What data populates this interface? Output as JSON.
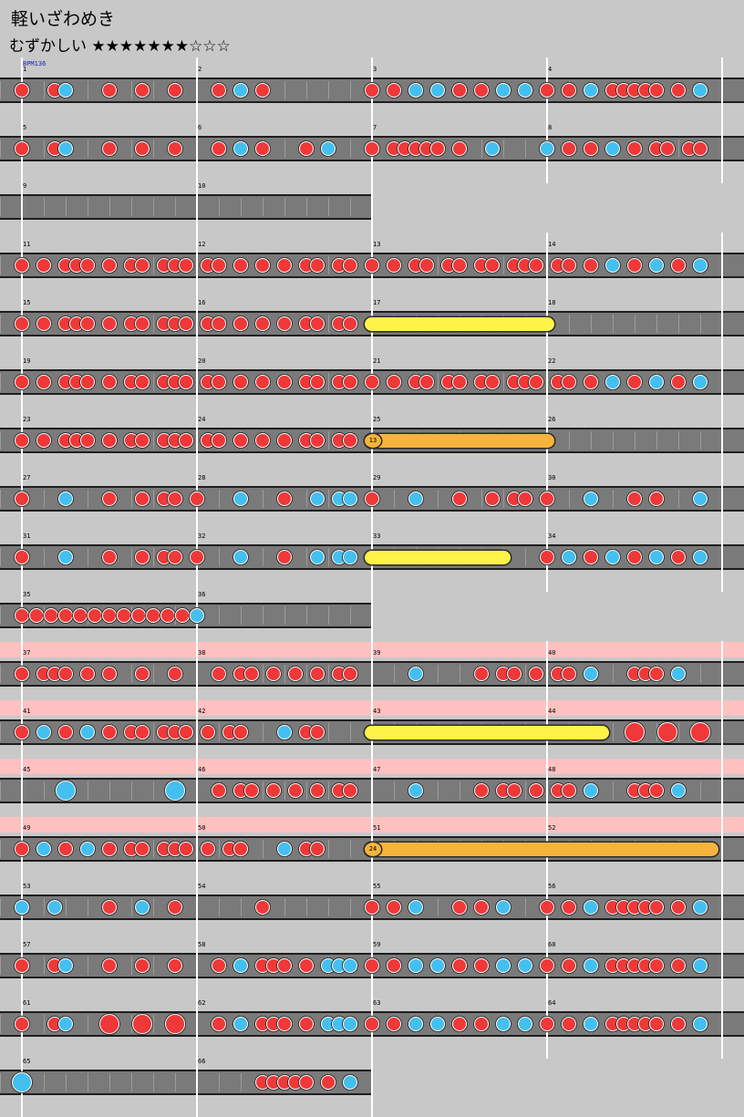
{
  "song": {
    "title": "軽いざわめき",
    "difficulty_label": "むずかしい",
    "stars": "★★★★★★★☆☆☆",
    "bpm_label": "BPM136"
  },
  "colors": {
    "background": "#c8c8c8",
    "lane": "#7a7a7a",
    "don": "#f03838",
    "ka": "#44c0f0",
    "roll": "#fff34a",
    "balloon": "#f6b43c",
    "gogo": "#ffc0c0"
  },
  "rows": [
    {
      "measures": 4,
      "start": 1,
      "notes": "d 0,d 1.5,k 2,d 4,d 5.5,d 7,d 9,k 10,d 11,d 16,d 17,k 18,k 19,d 20,d 21,k 22,k 23,d 24,d 25,k 26,d 27,d 27.5,d 28,d 28.5,d 29,d 30,k 31"
    },
    {
      "measures": 4,
      "start": 5,
      "notes": "d 0,d 1.5,k 2,d 4,d 5.5,d 7,d 9,k 10,d 11,d 13,k 14,d 16,d 17,d 17.5,d 18,d 18.5,d 19,d 20,k 21.5,k 24,d 25,d 26,k 27,d 28,d 29,d 29.5,d 30.5,d 31"
    },
    {
      "measures": 2,
      "start": 9,
      "notes": ""
    },
    {
      "measures": 4,
      "start": 11,
      "notes": "d 0,d 1,d 2,d 2.5,d 3,d 4,d 5,d 5.5,d 6.5,d 7,d 7.5,d 8.5,d 9,d 10,d 11,d 12,d 13,d 13.5,d 14.5,d 15,d 16,d 17,d 18,d 18.5,d 19.5,d 20,d 21,d 21.5,d 22.5,d 23,d 23.5,d 24.5,d 25,d 26,k 27,d 28,k 29,d 30,k 31"
    },
    {
      "measures": 4,
      "start": 15,
      "notes": "d 0,d 1,d 2,d 2.5,d 3,d 4,d 5,d 5.5,d 6.5,d 7,d 7.5,d 8.5,d 9,d 10,d 11,d 12,d 13,d 13.5,d 14.5,d 15",
      "roll": [
        16,
        24
      ]
    },
    {
      "measures": 4,
      "start": 19,
      "notes": "d 0,d 1,d 2,d 2.5,d 3,d 4,d 5,d 5.5,d 6.5,d 7,d 7.5,d 8.5,d 9,d 10,d 11,d 12,d 13,d 13.5,d 14.5,d 15,d 16,d 17,d 18,d 18.5,d 19.5,d 20,d 21,d 21.5,d 22.5,d 23,d 23.5,d 24.5,d 25,d 26,k 27,d 28,k 29,d 30,k 31"
    },
    {
      "measures": 4,
      "start": 23,
      "notes": "d 0,d 1,d 2,d 2.5,d 3,d 4,d 5,d 5.5,d 6.5,d 7,d 7.5,d 8.5,d 9,d 10,d 11,d 12,d 13,d 13.5,d 14.5,d 15",
      "balloon": [
        16,
        24,
        "13"
      ]
    },
    {
      "measures": 4,
      "start": 27,
      "notes": "d 0,k 2,d 4,d 5.5,d 6.5,d 7,d 8,k 10,d 12,k 13.5,k 14.5,k 15,d 16,k 18,d 20,d 21.5,d 22.5,d 23,d 24,k 26,d 28,d 29,k 31"
    },
    {
      "measures": 4,
      "start": 31,
      "notes": "d 0,k 2,d 4,d 5.5,d 6.5,d 7,d 8,k 10,d 12,k 13.5,k 14.5,k 15,d 24,k 25,d 26,k 27,d 28,k 29,d 30,k 31",
      "roll": [
        16,
        22
      ]
    },
    {
      "measures": 2,
      "start": 35,
      "notes": "d 0,d 0.667,d 1.333,d 2,d 2.667,d 3.333,d 4,d 4.667,d 5.333,d 6,d 6.667,d 7.333,k 8"
    },
    {
      "measures": 4,
      "start": 37,
      "gogo": true,
      "notes": "d 0,d 1,d 1.5,d 2,d 3,d 4,d 5.5,d 7,d 9,d 10,d 10.5,d 11.5,d 12.5,d 13.5,d 14.5,d 15,k 18,d 21,d 22,d 22.5,d 23.5,d 24.5,d 25,k 26,d 28,d 28.5,d 29,k 30"
    },
    {
      "measures": 4,
      "start": 41,
      "gogo": true,
      "notes": "d 0,k 1,d 2,k 3,d 4,d 5,d 5.5,d 6.5,d 7,d 7.5,d 8.5,d 9.5,d 10,k 12,d 13,d 13.5,D 28,D 29.5,D 31",
      "roll": [
        16,
        26.5
      ]
    },
    {
      "measures": 4,
      "start": 45,
      "gogo": true,
      "notes": "K 2,K 7,d 9,d 10,d 10.5,d 11.5,d 12.5,d 13.5,d 14.5,d 15,k 18,d 21,d 22,d 22.5,d 23.5,d 24.5,d 25,k 26,d 28,d 28.5,d 29,k 30"
    },
    {
      "measures": 4,
      "start": 49,
      "gogo": true,
      "notes": "d 0,k 1,d 2,k 3,d 4,d 5,d 5.5,d 6.5,d 7,d 7.5,d 8.5,d 9.5,d 10,k 12,d 13,d 13.5",
      "balloon": [
        16,
        31.5,
        "24"
      ]
    },
    {
      "measures": 4,
      "start": 53,
      "notes": "k 0,k 1.5,d 4,k 5.5,d 7,d 11,d 16,d 17,k 18,d 20,d 21,k 22,d 24,d 25,k 26,d 27,d 27.5,d 28,d 28.5,d 29,d 30,k 31"
    },
    {
      "measures": 4,
      "start": 57,
      "notes": "d 0,d 1.5,k 2,d 4,d 5.5,d 7,d 9,k 10,d 11,d 11.5,d 12,d 13,k 14,k 14.5,k 15,d 16,d 17,k 18,k 19,d 20,d 21,k 22,k 23,d 24,d 25,k 26,d 27,d 27.5,d 28,d 28.5,d 29,d 30,k 31"
    },
    {
      "measures": 4,
      "start": 61,
      "notes": "d 0,d 1.5,k 2,D 4,D 5.5,D 7,d 9,k 10,d 11,d 11.5,d 12,d 13,k 14,k 14.5,k 15,d 16,d 17,k 18,k 19,d 20,d 21,k 22,k 23,d 24,d 25,k 26,d 27,d 27.5,d 28,d 28.5,d 29,d 30,k 31"
    },
    {
      "measures": 2,
      "start": 65,
      "notes": "K 0,d 11,d 11.5,d 12,d 12.5,d 13,d 14,k 15"
    }
  ]
}
